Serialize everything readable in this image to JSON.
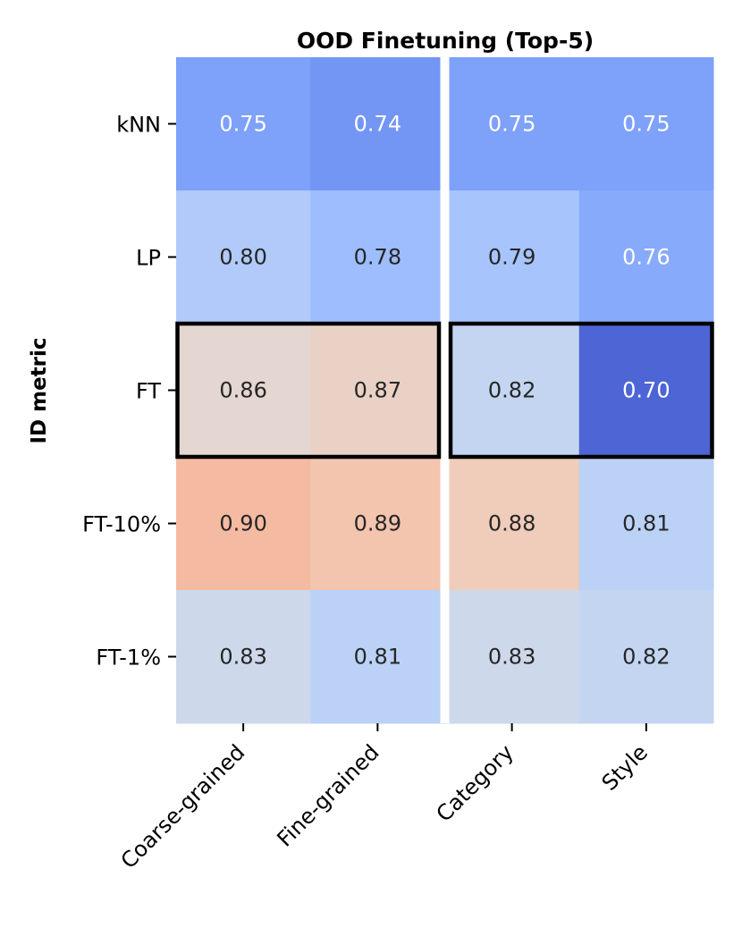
{
  "chart_data": {
    "type": "heatmap",
    "title": "OOD Finetuning (Top-5)",
    "ylabel": "ID metric",
    "xlabel": "",
    "rows": [
      "kNN",
      "LP",
      "FT",
      "FT-10%",
      "FT-1%"
    ],
    "columns": [
      "Coarse-grained",
      "Fine-grained",
      "Category",
      "Style"
    ],
    "column_groups": [
      [
        "Coarse-grained",
        "Fine-grained"
      ],
      [
        "Category",
        "Style"
      ]
    ],
    "values": [
      [
        "0.75",
        "0.74",
        "0.75",
        "0.75"
      ],
      [
        "0.80",
        "0.78",
        "0.79",
        "0.76"
      ],
      [
        "0.86",
        "0.87",
        "0.82",
        "0.70"
      ],
      [
        "0.90",
        "0.89",
        "0.88",
        "0.81"
      ],
      [
        "0.83",
        "0.81",
        "0.83",
        "0.82"
      ]
    ],
    "colormap": "coolwarm",
    "color_range": [
      0.68,
      0.95
    ],
    "highlighted_row": "FT",
    "colorbar": false
  },
  "colors": {
    "cool_end": "#3b4cc0",
    "neutral": "#dddcdc",
    "warm_end": "#b40426",
    "dark_text": "#262626",
    "light_text": "#ffffff",
    "highlight_border": "#000000"
  }
}
